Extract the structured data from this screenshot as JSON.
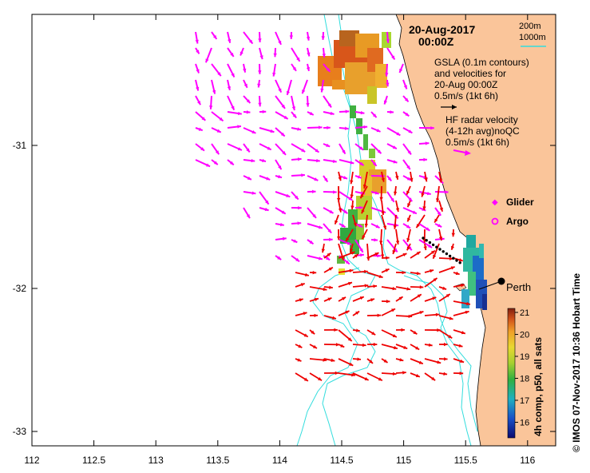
{
  "map": {
    "date_line": "20-Aug-2017",
    "time_line": "00:00Z",
    "place_label": "Perth",
    "side_credit": "© IMOS 07-Nov-2017 10:36 Hobart Time",
    "colorbar_label": "4h comp, p50, all sats",
    "legend": {
      "depth_200": "200m",
      "depth_1000": "1000m",
      "gsla_line1": "GSLA (0.1m contours)",
      "gsla_line2": "and velocities for",
      "gsla_line3": "20-Aug 00:00Z",
      "gsla_line4": "0.5m/s (1kt 6h)",
      "hf_line1": "HF radar velocity",
      "hf_line2": "(4-12h avg)noQC",
      "hf_line3": "0.5m/s (1kt 6h)",
      "glider": "Glider",
      "argo": "Argo"
    },
    "x_ticks": [
      "112",
      "112.5",
      "113",
      "113.5",
      "114",
      "114.5",
      "115",
      "115.5",
      "116"
    ],
    "y_ticks": [
      "-31",
      "-32",
      "-33"
    ],
    "colorbar_ticks": [
      "21",
      "20",
      "19",
      "18",
      "17",
      "16"
    ],
    "colors": {
      "land": "#FAC59A",
      "hf_arrow": "#FF00FF",
      "gsla_arrow": "#EE0000",
      "depth_contour": "#33DDDD",
      "glider_track": "#000000"
    }
  }
}
